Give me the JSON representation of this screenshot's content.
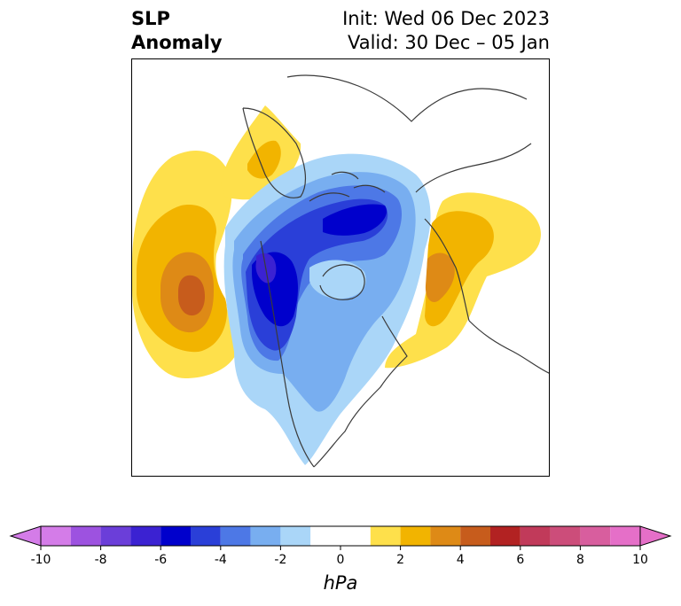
{
  "header": {
    "title_line1": "SLP",
    "title_line2": "Anomaly",
    "init_text": "Init: Wed 06 Dec 2023",
    "valid_text": "Valid: 30 Dec – 05 Jan"
  },
  "colorbar": {
    "unit": "hPa",
    "tick_labels": [
      "-10",
      "-8",
      "-6",
      "-4",
      "-2",
      "0",
      "2",
      "4",
      "6",
      "8",
      "10"
    ],
    "levels": [
      -10,
      -9,
      -8,
      -7,
      -6,
      -5,
      -4,
      -3,
      -2,
      -1,
      1,
      2,
      3,
      4,
      5,
      6,
      7,
      8,
      9,
      10
    ],
    "colors": [
      "#d47ce8",
      "#9d52e0",
      "#6b3ed9",
      "#3b22d2",
      "#0000cc",
      "#2a3fd8",
      "#4d78e6",
      "#78aef0",
      "#aad6f8",
      "#ffffff",
      "#fee04b",
      "#f2b400",
      "#de8a16",
      "#c75c1c",
      "#b22222",
      "#c13a5a",
      "#cc4d7a",
      "#d85e9e",
      "#e56fc8"
    ],
    "under_color": "#d47ce8",
    "over_color": "#e56fc8"
  },
  "anomaly_colors": {
    "pos1": "#fee04b",
    "pos2": "#f2b400",
    "pos3": "#de8a16",
    "pos4": "#c75c1c",
    "neg1": "#aad6f8",
    "neg2": "#78aef0",
    "neg3": "#4d78e6",
    "neg4": "#2a3fd8",
    "neg5": "#0000cc",
    "neg6": "#3b22d2",
    "coast": "#3a3a3a"
  }
}
